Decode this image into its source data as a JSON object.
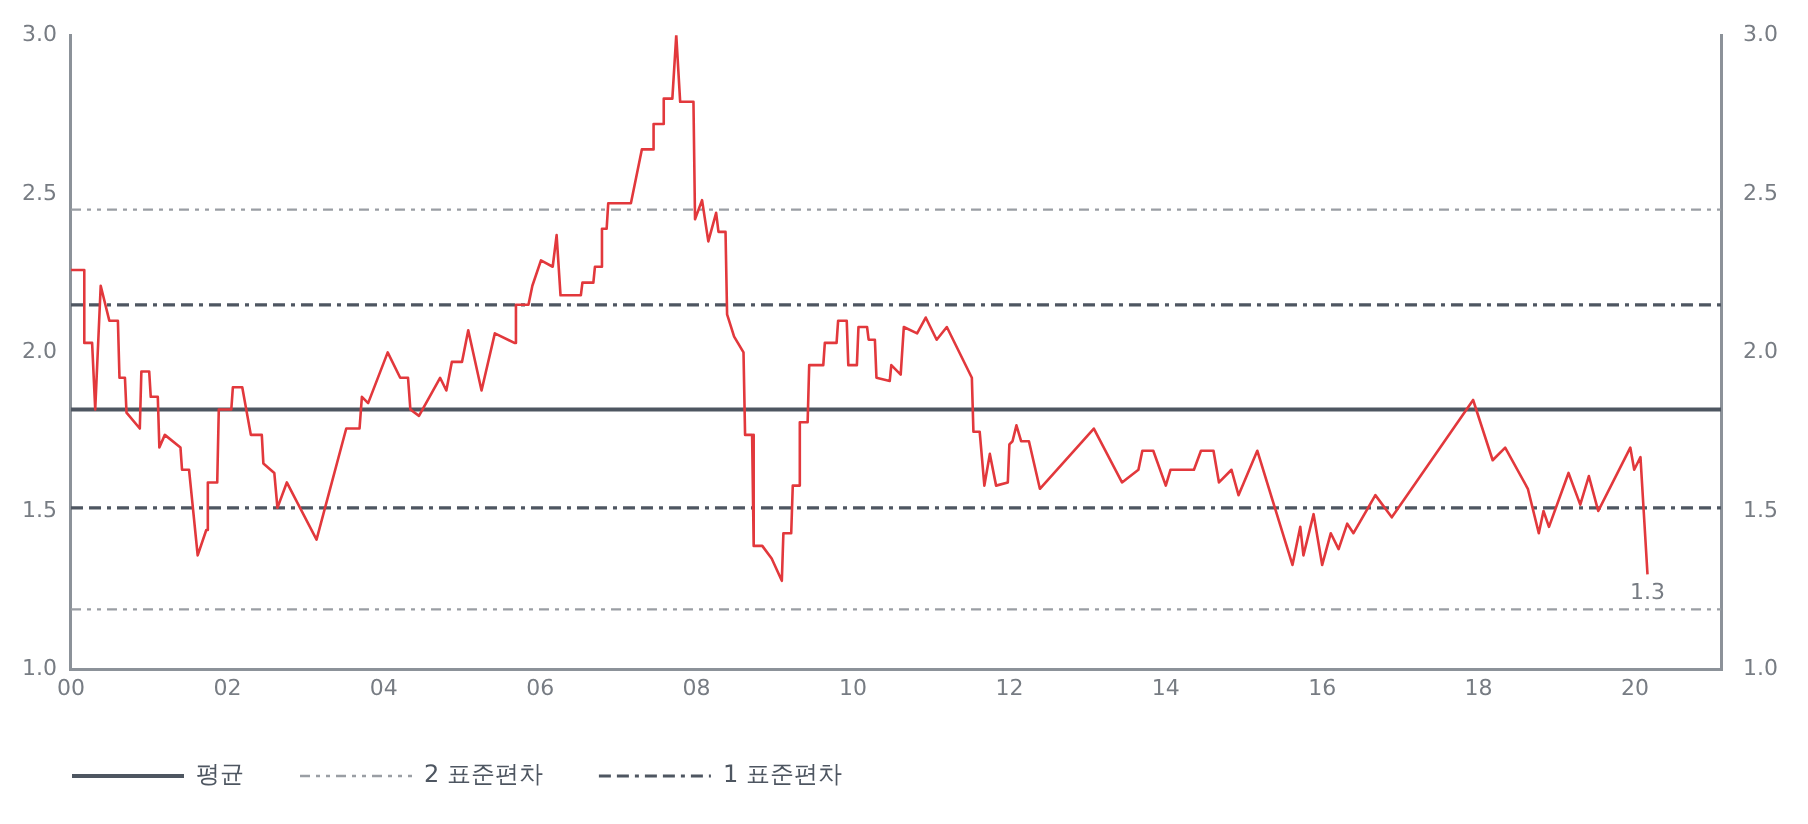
{
  "chart_data": {
    "type": "line",
    "color": "#e2383c",
    "x": [
      2000.0,
      2000.17,
      2000.17,
      2000.27,
      2000.31,
      2000.38,
      2000.49,
      2000.6,
      2000.62,
      2000.69,
      2000.71,
      2000.88,
      2000.9,
      2001.0,
      2001.02,
      2001.11,
      2001.13,
      2001.2,
      2001.4,
      2001.42,
      2001.51,
      2001.62,
      2001.73,
      2001.75,
      2001.87,
      2001.89,
      2002.05,
      2002.07,
      2002.19,
      2002.3,
      2002.44,
      2002.46,
      2002.6,
      2002.64,
      2002.76,
      2003.14,
      2003.52,
      2003.69,
      2003.72,
      2003.8,
      2004.05,
      2004.21,
      2004.31,
      2004.34,
      2004.45,
      2004.72,
      2004.8,
      2004.87,
      2005.0,
      2005.08,
      2005.25,
      2005.42,
      2005.67,
      2005.69,
      2005.85,
      2005.9,
      2006.01,
      2006.16,
      2006.21,
      2006.26,
      2006.52,
      2006.54,
      2006.68,
      2006.7,
      2006.77,
      2006.79,
      2006.85,
      2006.87,
      2007.16,
      2007.3,
      2007.43,
      2007.45,
      2007.56,
      2007.58,
      2007.69,
      2007.74,
      2007.79,
      2007.96,
      2007.98,
      2008.07,
      2008.15,
      2008.25,
      2008.28,
      2008.37,
      2008.39,
      2008.48,
      2008.6,
      2008.62,
      2008.71,
      2008.73,
      2008.84,
      2008.96,
      2009.09,
      2009.11,
      2009.21,
      2009.23,
      2009.3,
      2009.32,
      2009.42,
      2009.44,
      2009.62,
      2009.64,
      2009.79,
      2009.81,
      2009.92,
      2009.94,
      2010.05,
      2010.07,
      2010.18,
      2010.2,
      2010.28,
      2010.3,
      2010.47,
      2010.49,
      2010.61,
      2010.65,
      2010.82,
      2010.93,
      2011.07,
      2011.2,
      2011.52,
      2011.54,
      2011.62,
      2011.68,
      2011.75,
      2011.83,
      2011.98,
      2012.0,
      2012.04,
      2012.09,
      2012.15,
      2012.25,
      2012.39,
      2013.08,
      2013.44,
      2013.65,
      2013.7,
      2013.84,
      2014.0,
      2014.06,
      2014.36,
      2014.45,
      2014.61,
      2014.68,
      2014.84,
      2014.93,
      2015.17,
      2015.62,
      2015.72,
      2015.76,
      2015.89,
      2016.0,
      2016.11,
      2016.21,
      2016.32,
      2016.4,
      2016.68,
      2016.89,
      2017.93,
      2018.18,
      2018.34,
      2018.63,
      2018.77,
      2018.83,
      2018.9,
      2019.15,
      2019.3,
      2019.41,
      2019.53,
      2019.94,
      2019.99,
      2020.07,
      2020.16
    ],
    "values": [
      2.26,
      2.26,
      2.03,
      2.03,
      1.82,
      2.21,
      2.1,
      2.1,
      1.92,
      1.92,
      1.81,
      1.76,
      1.94,
      1.94,
      1.86,
      1.86,
      1.7,
      1.74,
      1.7,
      1.63,
      1.63,
      1.36,
      1.44,
      1.59,
      1.59,
      1.82,
      1.82,
      1.89,
      1.89,
      1.74,
      1.74,
      1.65,
      1.62,
      1.51,
      1.59,
      1.41,
      1.76,
      1.76,
      1.86,
      1.84,
      2.0,
      1.92,
      1.92,
      1.82,
      1.8,
      1.92,
      1.88,
      1.97,
      1.97,
      2.07,
      1.88,
      2.06,
      2.03,
      2.15,
      2.15,
      2.21,
      2.29,
      2.27,
      2.37,
      2.18,
      2.18,
      2.22,
      2.22,
      2.27,
      2.27,
      2.39,
      2.39,
      2.47,
      2.47,
      2.64,
      2.64,
      2.72,
      2.72,
      2.8,
      2.8,
      3.0,
      2.79,
      2.79,
      2.42,
      2.48,
      2.35,
      2.44,
      2.38,
      2.38,
      2.12,
      2.05,
      2.0,
      1.74,
      1.74,
      1.39,
      1.39,
      1.35,
      1.28,
      1.43,
      1.43,
      1.58,
      1.58,
      1.78,
      1.78,
      1.96,
      1.96,
      2.03,
      2.03,
      2.1,
      2.1,
      1.96,
      1.96,
      2.08,
      2.08,
      2.04,
      2.04,
      1.92,
      1.91,
      1.96,
      1.93,
      2.08,
      2.06,
      2.11,
      2.04,
      2.08,
      1.92,
      1.75,
      1.75,
      1.58,
      1.68,
      1.58,
      1.59,
      1.71,
      1.72,
      1.77,
      1.72,
      1.72,
      1.57,
      1.76,
      1.59,
      1.63,
      1.69,
      1.69,
      1.58,
      1.63,
      1.63,
      1.69,
      1.69,
      1.59,
      1.63,
      1.55,
      1.69,
      1.33,
      1.45,
      1.36,
      1.49,
      1.33,
      1.43,
      1.38,
      1.46,
      1.43,
      1.55,
      1.48,
      1.85,
      1.66,
      1.7,
      1.57,
      1.43,
      1.5,
      1.45,
      1.62,
      1.52,
      1.61,
      1.5,
      1.7,
      1.63,
      1.67,
      1.3
    ],
    "xlim": [
      2000,
      2021.1
    ],
    "xticks": [
      {
        "value": 2000,
        "label": "00"
      },
      {
        "value": 2002,
        "label": "02"
      },
      {
        "value": 2004,
        "label": "04"
      },
      {
        "value": 2006,
        "label": "06"
      },
      {
        "value": 2008,
        "label": "08"
      },
      {
        "value": 2010,
        "label": "10"
      },
      {
        "value": 2012,
        "label": "12"
      },
      {
        "value": 2014,
        "label": "14"
      },
      {
        "value": 2016,
        "label": "16"
      },
      {
        "value": 2018,
        "label": "18"
      },
      {
        "value": 2020,
        "label": "20"
      }
    ],
    "ylim": [
      1,
      3
    ],
    "yticks": [
      {
        "value": 1,
        "label": "1.0"
      },
      {
        "value": 1.5,
        "label": "1.5"
      },
      {
        "value": 2,
        "label": "2.0"
      },
      {
        "value": 2.5,
        "label": "2.5"
      },
      {
        "value": 3,
        "label": "3.0"
      }
    ],
    "y2lim": [
      1,
      3
    ],
    "y2ticks": [
      {
        "value": 1,
        "label": "1.0"
      },
      {
        "value": 1.5,
        "label": "1.5"
      },
      {
        "value": 2,
        "label": "2.0"
      },
      {
        "value": 2.5,
        "label": "2.5"
      },
      {
        "value": 3,
        "label": "3.0"
      }
    ],
    "ref_lines": [
      {
        "axis": "y",
        "value": 1.82,
        "label": "평균",
        "color": "#4e5661",
        "line_style": "solid"
      },
      {
        "axis": "y",
        "value": 2.45,
        "label": "2 표준편차",
        "color": "#9a9ea4",
        "line_style": "dotted"
      },
      {
        "axis": "y",
        "value": 1.19,
        "color": "#9a9ea4",
        "line_style": "dotted"
      },
      {
        "axis": "y",
        "value": 2.15,
        "label": "1 표준편차",
        "color": "#4e5661",
        "line_style": "dashed"
      },
      {
        "axis": "y",
        "value": 1.51,
        "color": "#4e5661",
        "line_style": "dashed"
      }
    ],
    "annotations": [
      {
        "text": "1.3",
        "x": 2020.16,
        "y": 1.3
      }
    ],
    "legend": "bottom"
  }
}
